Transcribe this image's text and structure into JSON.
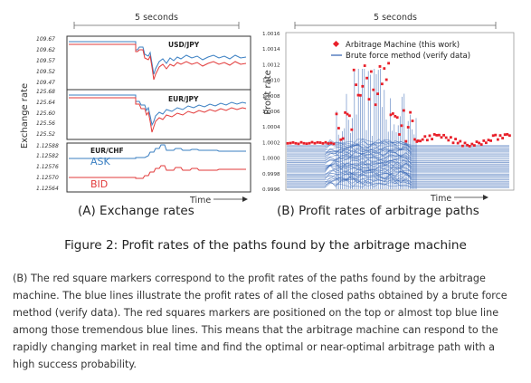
{
  "left_panel": {
    "top_label": "5 seconds",
    "ylabel": "Exchange rate",
    "xlabel": "Time",
    "caption": "(A) Exchange rates",
    "subplots": [
      {
        "title": "USD/JPY",
        "ticks": [
          "109.67",
          "109.62",
          "109.57",
          "109.52",
          "109.47"
        ],
        "colors": {
          "ask": "#3a7fc2",
          "bid": "#e23a3a"
        }
      },
      {
        "title": "EUR/JPY",
        "ticks": [
          "125.68",
          "125.64",
          "125.60",
          "125.56",
          "125.52"
        ],
        "colors": {
          "ask": "#3a7fc2",
          "bid": "#e23a3a"
        }
      },
      {
        "title": "EUR/CHF",
        "ticks": [
          "1.12588",
          "1.12582",
          "1.12576",
          "1.12570",
          "1.12564"
        ],
        "ask_label": "ASK",
        "bid_label": "BID",
        "colors": {
          "ask": "#3a7fc2",
          "bid": "#e23a3a"
        }
      }
    ]
  },
  "right_panel": {
    "top_label": "5 seconds",
    "ylabel": "Profit rate",
    "xlabel": "Time",
    "caption": "(B) Profit rates of arbitrage paths",
    "ticks": [
      "1.0016",
      "1.0014",
      "1.0012",
      "1.0010",
      "1.0008",
      "1.0006",
      "1.0004",
      "1.0002",
      "1.0000",
      "0.9998",
      "0.9996"
    ],
    "legend": [
      "Arbitrage Machine (this work)",
      "Brute force method (verify data)"
    ],
    "colors": {
      "machine": "#e8202a",
      "brute": "#2e5fb0"
    }
  },
  "figure_caption": "Figure 2: Profit rates of the paths found by the arbitrage machine",
  "description": "(B) The red square markers correspond to the profit rates of the paths found by the arbitrage machine. The blue lines illustrate the profit rates of all the closed paths obtained by a brute force method (verify data). The red squares markers are positioned on the top or almost top blue line among those tremendous blue lines. This means that the arbitrage machine can respond to the rapidly changing market in real time and find the optimal or near-optimal arbitrage path with a high success probability."
}
